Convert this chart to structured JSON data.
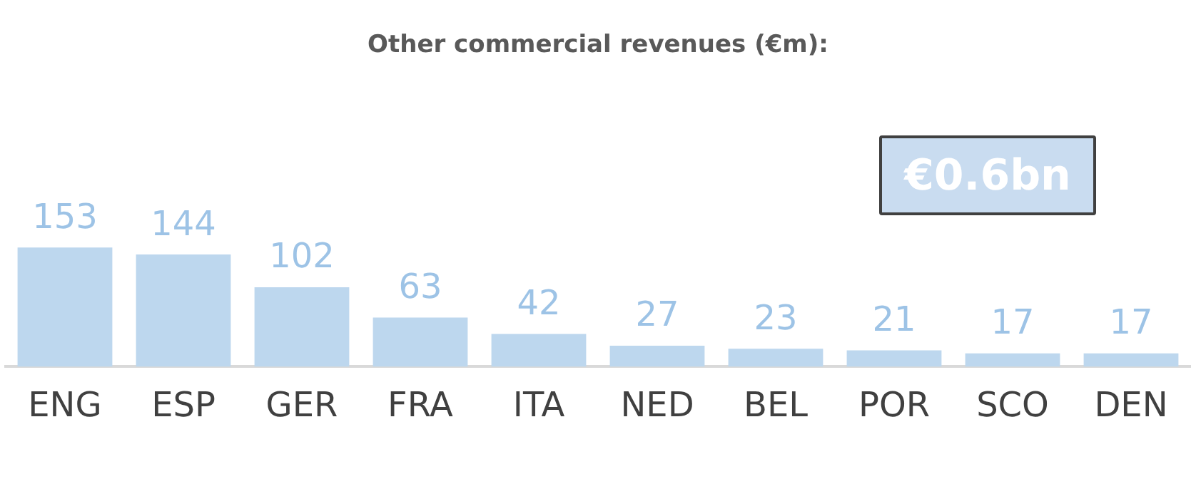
{
  "chart_data": {
    "type": "bar",
    "title": "Other commercial revenues (€m):",
    "categories": [
      "ENG",
      "ESP",
      "GER",
      "FRA",
      "ITA",
      "NED",
      "BEL",
      "POR",
      "SCO",
      "DEN"
    ],
    "values": [
      153,
      144,
      102,
      63,
      42,
      27,
      23,
      21,
      17,
      17
    ],
    "color": "#bdd7ee",
    "data_labels": true,
    "grid": false,
    "legend": false,
    "annotations": [
      "€0.6bn"
    ]
  }
}
